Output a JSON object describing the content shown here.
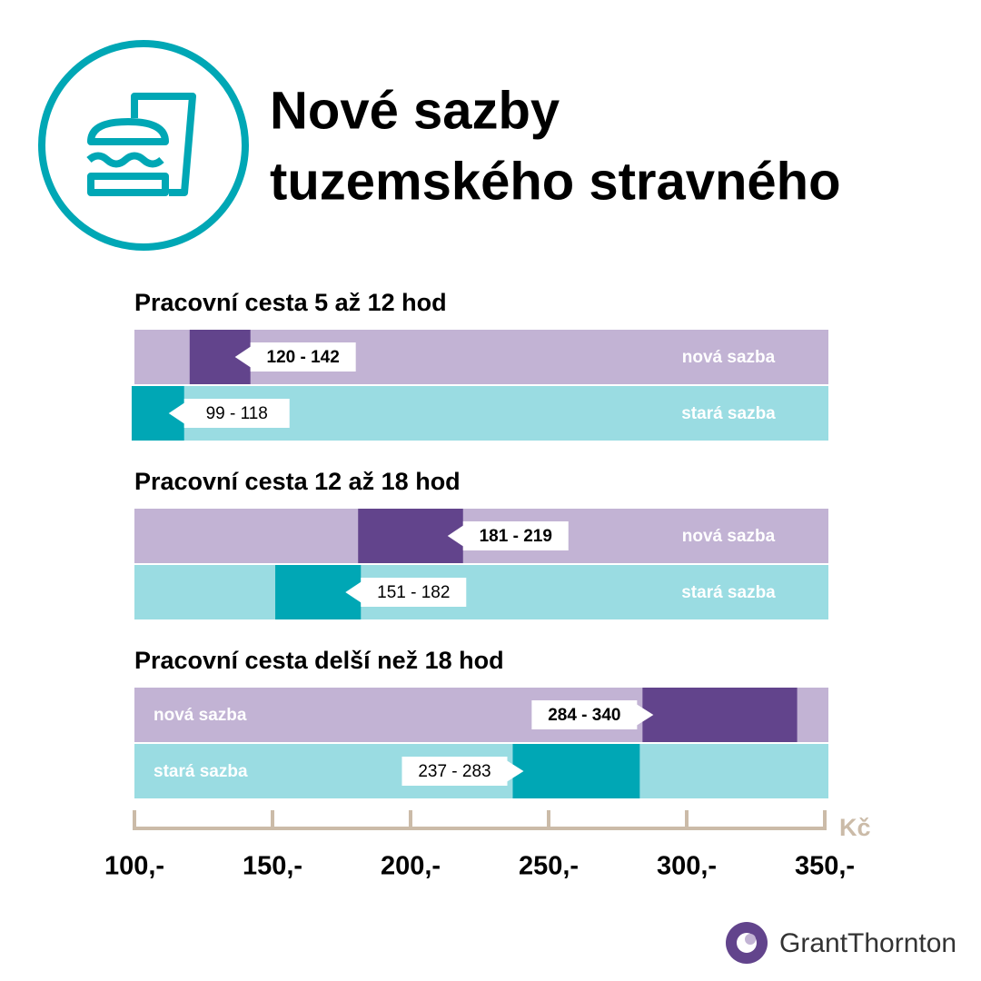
{
  "chart_data": {
    "type": "range-bar",
    "title": [
      "Nové sazby",
      "tuzemského stravného"
    ],
    "groups": [
      "Pracovní cesta 5 až 12 hod",
      "Pracovní cesta 12 až 18 hod",
      "Pracovní cesta delší než 18 hod"
    ],
    "series": [
      {
        "name": "nová sazba",
        "color": "#62448c",
        "track_color": "#c2b3d4",
        "values": [
          [
            120,
            142
          ],
          [
            181,
            219
          ],
          [
            284,
            340
          ]
        ],
        "value_labels": [
          "120 - 142",
          "181 - 219",
          "284 - 340"
        ]
      },
      {
        "name": "stará sazba",
        "color": "#00a7b5",
        "track_color": "#9adce2",
        "values": [
          [
            99,
            118
          ],
          [
            151,
            182
          ],
          [
            237,
            283
          ]
        ],
        "value_labels": [
          "99 - 118",
          "151 - 182",
          "237 - 283"
        ]
      }
    ],
    "xlim": [
      100,
      350
    ],
    "xticks": [
      {
        "value": 100,
        "label": "100,-"
      },
      {
        "value": 150,
        "label": "150,-"
      },
      {
        "value": 200,
        "label": "200,-"
      },
      {
        "value": 250,
        "label": "250,-"
      },
      {
        "value": 300,
        "label": "300,-"
      },
      {
        "value": 350,
        "label": "350,-"
      }
    ],
    "x_unit": "Kč"
  },
  "footer": {
    "logo": "GrantThornton"
  }
}
